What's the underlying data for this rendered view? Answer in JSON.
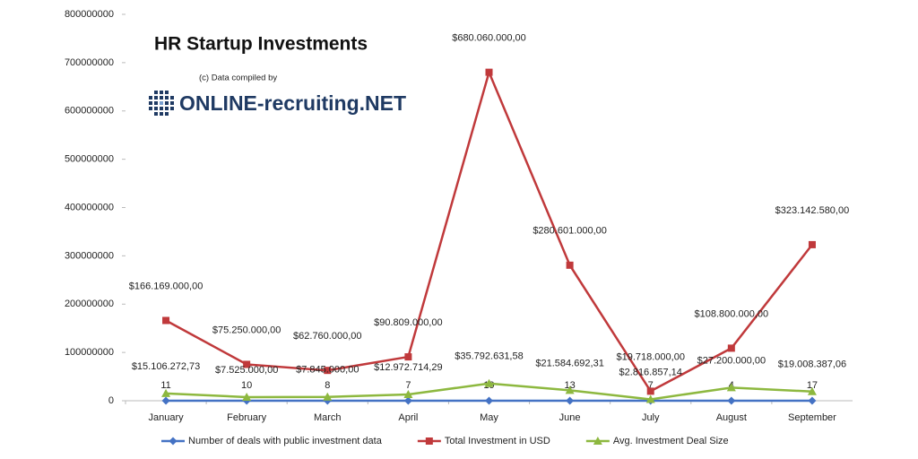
{
  "chart_data": {
    "type": "line",
    "title": "HR Startup Investments",
    "credit": "(c) Data compiled by",
    "logo": "ONLINE-recruiting.NET",
    "categories": [
      "January",
      "February",
      "March",
      "April",
      "May",
      "June",
      "July",
      "August",
      "September"
    ],
    "ylim": [
      0,
      800000000
    ],
    "yticks": [
      0,
      100000000,
      200000000,
      300000000,
      400000000,
      500000000,
      600000000,
      700000000,
      800000000
    ],
    "legend": "bottom",
    "series": [
      {
        "name": "Number of deals with public investment data",
        "color": "#4472c4",
        "marker": "diamond",
        "values": [
          11,
          10,
          8,
          7,
          19,
          13,
          7,
          4,
          17
        ]
      },
      {
        "name": "Total Investment in USD",
        "color": "#c0393b",
        "marker": "square",
        "values": [
          166169000,
          75250000,
          62760000,
          90809000,
          680060000,
          280601000,
          19718000,
          108800000,
          323142580
        ],
        "value_labels": [
          "$166.169.000,00",
          "$75.250.000,00",
          "$62.760.000,00",
          "$90.809.000,00",
          "$680.060.000,00",
          "$280.601.000,00",
          "$19.718.000,00",
          "$108.800.000,00",
          "$323.142.580,00"
        ]
      },
      {
        "name": "Avg. Investment Deal Size",
        "color": "#8db83f",
        "marker": "triangle",
        "values": [
          15106272.73,
          7525000,
          7845000,
          12972714.29,
          35792631.58,
          21584692.31,
          2816857.14,
          27200000,
          19008387.06
        ],
        "value_labels": [
          "$15.106.272,73",
          "$7.525.000,00",
          "$7.845.000,00",
          "$12.972.714,29",
          "$35.792.631,58",
          "$21.584.692,31",
          "$2.816.857,14",
          "$27.200.000,00",
          "$19.008.387,06"
        ]
      }
    ]
  }
}
